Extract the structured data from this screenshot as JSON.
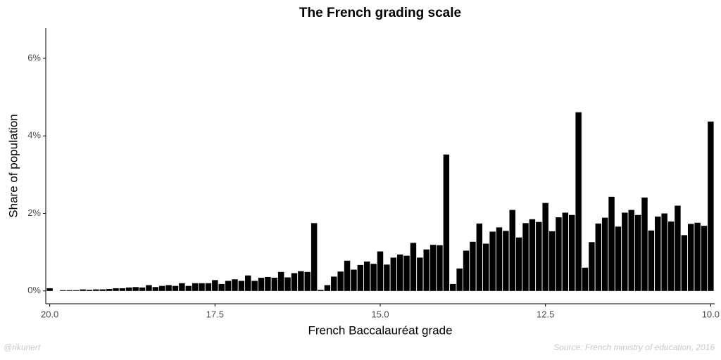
{
  "chart_data": {
    "type": "bar",
    "title": "The French grading scale",
    "x_label": "French Baccalauréat grade",
    "y_label": "Share of population",
    "credit": "@rikunert",
    "source": "Source: French ministry of education, 2016",
    "color": "#000000",
    "x": [
      20.0,
      19.9,
      19.8,
      19.7,
      19.6,
      19.5,
      19.4,
      19.3,
      19.2,
      19.1,
      19.0,
      18.9,
      18.8,
      18.7,
      18.6,
      18.5,
      18.4,
      18.3,
      18.2,
      18.1,
      18.0,
      17.9,
      17.8,
      17.7,
      17.6,
      17.5,
      17.4,
      17.3,
      17.2,
      17.1,
      17.0,
      16.9,
      16.8,
      16.7,
      16.6,
      16.5,
      16.4,
      16.3,
      16.2,
      16.1,
      16.0,
      15.9,
      15.8,
      15.7,
      15.6,
      15.5,
      15.4,
      15.3,
      15.2,
      15.1,
      15.0,
      14.9,
      14.8,
      14.7,
      14.6,
      14.5,
      14.4,
      14.3,
      14.2,
      14.1,
      14.0,
      13.9,
      13.8,
      13.7,
      13.6,
      13.5,
      13.4,
      13.3,
      13.2,
      13.1,
      13.0,
      12.9,
      12.8,
      12.7,
      12.6,
      12.5,
      12.4,
      12.3,
      12.2,
      12.1,
      12.0,
      11.9,
      11.8,
      11.7,
      11.6,
      11.5,
      11.4,
      11.3,
      11.2,
      11.1,
      11.0,
      10.9,
      10.8,
      10.7,
      10.6,
      10.5,
      10.4,
      10.3,
      10.2,
      10.1,
      10.0
    ],
    "values": [
      0.07,
      0.0,
      0.02,
      0.02,
      0.02,
      0.04,
      0.03,
      0.04,
      0.04,
      0.05,
      0.07,
      0.07,
      0.09,
      0.1,
      0.09,
      0.15,
      0.1,
      0.13,
      0.15,
      0.13,
      0.2,
      0.13,
      0.2,
      0.2,
      0.2,
      0.28,
      0.18,
      0.26,
      0.3,
      0.26,
      0.4,
      0.26,
      0.34,
      0.36,
      0.34,
      0.49,
      0.35,
      0.46,
      0.51,
      0.49,
      1.75,
      0.03,
      0.15,
      0.37,
      0.5,
      0.78,
      0.55,
      0.67,
      0.76,
      0.7,
      1.02,
      0.68,
      0.86,
      0.94,
      0.91,
      1.24,
      0.86,
      1.07,
      1.19,
      1.18,
      3.52,
      0.18,
      0.58,
      1.04,
      1.27,
      1.74,
      1.22,
      1.53,
      1.64,
      1.55,
      2.09,
      1.38,
      1.75,
      1.85,
      1.78,
      2.27,
      1.54,
      1.9,
      2.02,
      1.96,
      4.61,
      0.6,
      1.26,
      1.74,
      1.89,
      2.43,
      1.66,
      2.02,
      2.09,
      1.96,
      2.41,
      1.56,
      1.92,
      2.0,
      1.79,
      2.2,
      1.44,
      1.73,
      1.76,
      1.68,
      4.37
    ],
    "bar_width": 0.09,
    "xlim": [
      20.06,
      9.94
    ],
    "ylim": [
      -0.33,
      6.78
    ],
    "xticks": [
      {
        "value": 20.0,
        "label": "20.0"
      },
      {
        "value": 17.5,
        "label": "17.5"
      },
      {
        "value": 15.0,
        "label": "15.0"
      },
      {
        "value": 12.5,
        "label": "12.5"
      },
      {
        "value": 10.0,
        "label": "10.0"
      }
    ],
    "yticks": [
      {
        "value": 0,
        "label": "0%"
      },
      {
        "value": 2,
        "label": "2%"
      },
      {
        "value": 4,
        "label": "4%"
      },
      {
        "value": 6,
        "label": "6%"
      }
    ],
    "grid": false
  }
}
